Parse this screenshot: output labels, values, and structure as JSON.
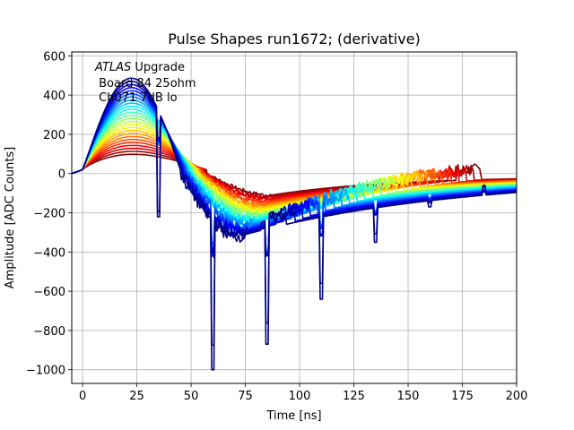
{
  "chart_data": {
    "type": "line",
    "title": "Pulse Shapes run1672; (derivative)",
    "xlabel": "Time [ns]",
    "ylabel": "Amplitude [ADC Counts]",
    "xlim": [
      -5,
      200
    ],
    "ylim": [
      -1070,
      620
    ],
    "xticks": [
      0,
      25,
      50,
      75,
      100,
      125,
      150,
      175,
      200
    ],
    "xtick_labels": [
      "0",
      "25",
      "50",
      "75",
      "100",
      "125",
      "150",
      "175",
      "200"
    ],
    "yticks": [
      -1000,
      -800,
      -600,
      -400,
      -200,
      0,
      200,
      400,
      600
    ],
    "ytick_labels": [
      "−1000",
      "−800",
      "−600",
      "−400",
      "−200",
      "0",
      "200",
      "400",
      "600"
    ],
    "grid": true,
    "annotation": {
      "line1_italic": "ATLAS",
      "line1_rest": " Upgrade",
      "line2": " Board 84 25ohm",
      "line3": " Ch071 7dB lo"
    },
    "colormap": "jet",
    "series_count": 26,
    "peak_amplitude_range": [
      110,
      540
    ],
    "peak_time": 21,
    "zero_crossing_time_range": [
      45,
      57
    ],
    "undershoot_time_range": [
      75,
      92
    ],
    "tail_end_value": -15,
    "glitches": [
      {
        "x": 35,
        "y": -220
      },
      {
        "x": 60,
        "y": -1000
      },
      {
        "x": 85,
        "y": -870
      },
      {
        "x": 110,
        "y": -640
      },
      {
        "x": 135,
        "y": -350
      },
      {
        "x": 160,
        "y": -170
      },
      {
        "x": 185,
        "y": -70
      }
    ]
  }
}
